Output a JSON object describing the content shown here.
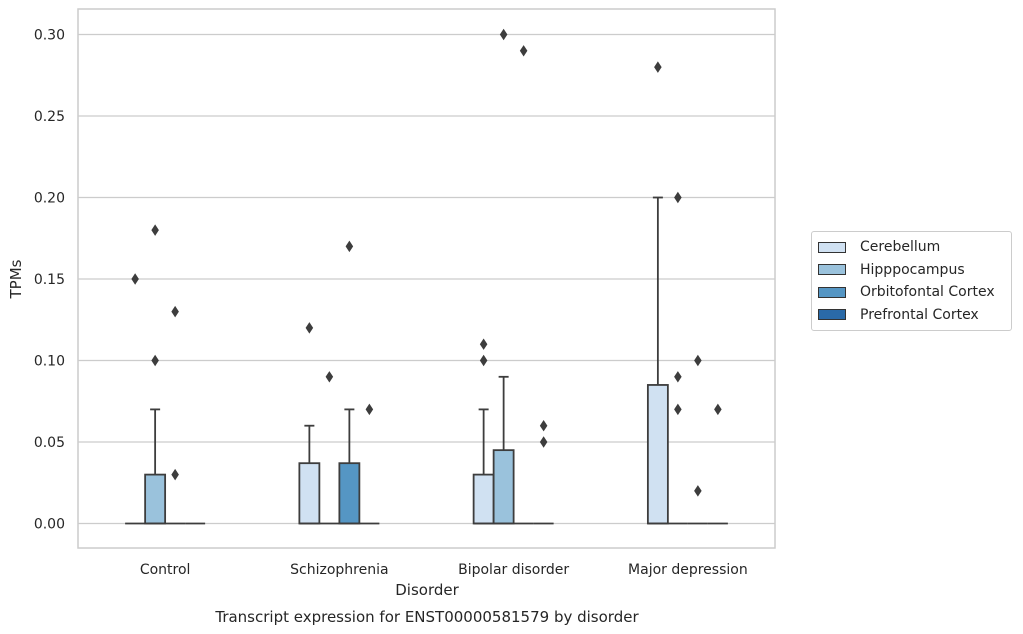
{
  "chart_data": {
    "type": "box",
    "title": "",
    "caption": "Transcript expression for ENST00000581579 by disorder",
    "xlabel": "Disorder",
    "ylabel": "TPMs",
    "ylim": [
      -0.015,
      0.315
    ],
    "yticks": [
      0.0,
      0.05,
      0.1,
      0.15,
      0.2,
      0.25,
      0.3
    ],
    "ytick_labels": [
      "0.00",
      "0.05",
      "0.10",
      "0.15",
      "0.20",
      "0.25",
      "0.30"
    ],
    "grid": "horizontal",
    "legend_position": "right",
    "categories": [
      "Control",
      "Schizophrenia",
      "Bipolar disorder",
      "Major depression"
    ],
    "series": [
      {
        "name": "Cerebellum",
        "color": "#d0e1f2",
        "boxes": [
          {
            "q1": 0,
            "median": 0,
            "q3": 0,
            "whislo": 0,
            "whishi": 0,
            "fliers": [
              0.15
            ]
          },
          {
            "q1": 0,
            "median": 0,
            "q3": 0.037,
            "whislo": 0,
            "whishi": 0.06,
            "fliers": [
              0.12
            ]
          },
          {
            "q1": 0,
            "median": 0,
            "q3": 0.03,
            "whislo": 0,
            "whishi": 0.07,
            "fliers": [
              0.1,
              0.11
            ]
          },
          {
            "q1": 0,
            "median": 0,
            "q3": 0.085,
            "whislo": 0,
            "whishi": 0.2,
            "fliers": [
              0.28
            ]
          }
        ]
      },
      {
        "name": "Hipppocampus",
        "color": "#9ac2dc",
        "boxes": [
          {
            "q1": 0,
            "median": 0,
            "q3": 0.03,
            "whislo": 0,
            "whishi": 0.07,
            "fliers": [
              0.1,
              0.18
            ]
          },
          {
            "q1": 0,
            "median": 0,
            "q3": 0,
            "whislo": 0,
            "whishi": 0,
            "fliers": [
              0.09
            ]
          },
          {
            "q1": 0,
            "median": 0,
            "q3": 0.045,
            "whislo": 0,
            "whishi": 0.09,
            "fliers": [
              0.3
            ]
          },
          {
            "q1": 0,
            "median": 0,
            "q3": 0,
            "whislo": 0,
            "whishi": 0,
            "fliers": [
              0.07,
              0.09,
              0.2
            ]
          }
        ]
      },
      {
        "name": "Orbitofontal Cortex",
        "color": "#5596c4",
        "boxes": [
          {
            "q1": 0,
            "median": 0,
            "q3": 0,
            "whislo": 0,
            "whishi": 0,
            "fliers": [
              0.03,
              0.13
            ]
          },
          {
            "q1": 0,
            "median": 0,
            "q3": 0.037,
            "whislo": 0,
            "whishi": 0.07,
            "fliers": [
              0.17
            ]
          },
          {
            "q1": 0,
            "median": 0,
            "q3": 0,
            "whislo": 0,
            "whishi": 0,
            "fliers": [
              0.29
            ]
          },
          {
            "q1": 0,
            "median": 0,
            "q3": 0,
            "whislo": 0,
            "whishi": 0,
            "fliers": [
              0.02,
              0.1
            ]
          }
        ]
      },
      {
        "name": "Prefrontal Cortex",
        "color": "#2a6aa8",
        "boxes": [
          {
            "q1": 0,
            "median": 0,
            "q3": 0,
            "whislo": 0,
            "whishi": 0,
            "fliers": []
          },
          {
            "q1": 0,
            "median": 0,
            "q3": 0,
            "whislo": 0,
            "whishi": 0,
            "fliers": [
              0.07
            ]
          },
          {
            "q1": 0,
            "median": 0,
            "q3": 0,
            "whislo": 0,
            "whishi": 0,
            "fliers": [
              0.05,
              0.06
            ]
          },
          {
            "q1": 0,
            "median": 0,
            "q3": 0,
            "whislo": 0,
            "whishi": 0,
            "fliers": [
              0.07
            ]
          }
        ]
      }
    ]
  }
}
